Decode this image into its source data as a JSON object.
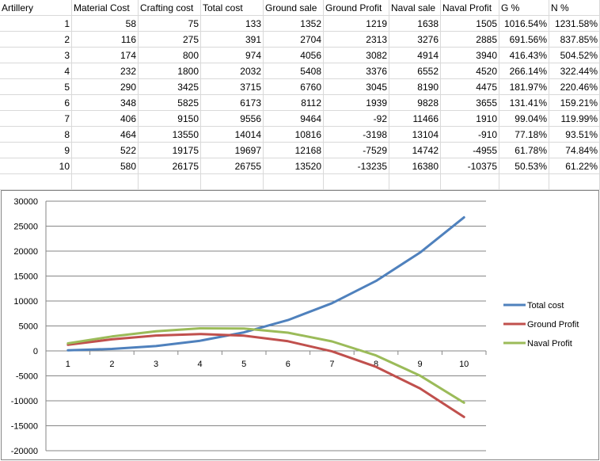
{
  "sheet": {
    "headers": [
      "Artillery",
      "Material Cost",
      "Crafting cost",
      "Total cost",
      "Ground sale",
      "Ground Profit",
      "Naval sale",
      "Naval Profit",
      "G %",
      "N %"
    ],
    "rows": [
      [
        "1",
        "58",
        "75",
        "133",
        "1352",
        "1219",
        "1638",
        "1505",
        "1016.54%",
        "1231.58%"
      ],
      [
        "2",
        "116",
        "275",
        "391",
        "2704",
        "2313",
        "3276",
        "2885",
        "691.56%",
        "837.85%"
      ],
      [
        "3",
        "174",
        "800",
        "974",
        "4056",
        "3082",
        "4914",
        "3940",
        "416.43%",
        "504.52%"
      ],
      [
        "4",
        "232",
        "1800",
        "2032",
        "5408",
        "3376",
        "6552",
        "4520",
        "266.14%",
        "322.44%"
      ],
      [
        "5",
        "290",
        "3425",
        "3715",
        "6760",
        "3045",
        "8190",
        "4475",
        "181.97%",
        "220.46%"
      ],
      [
        "6",
        "348",
        "5825",
        "6173",
        "8112",
        "1939",
        "9828",
        "3655",
        "131.41%",
        "159.21%"
      ],
      [
        "7",
        "406",
        "9150",
        "9556",
        "9464",
        "-92",
        "11466",
        "1910",
        "99.04%",
        "119.99%"
      ],
      [
        "8",
        "464",
        "13550",
        "14014",
        "10816",
        "-3198",
        "13104",
        "-910",
        "77.18%",
        "93.51%"
      ],
      [
        "9",
        "522",
        "19175",
        "19697",
        "12168",
        "-7529",
        "14742",
        "-4955",
        "61.78%",
        "74.84%"
      ],
      [
        "10",
        "580",
        "26175",
        "26755",
        "13520",
        "-13235",
        "16380",
        "-10375",
        "50.53%",
        "61.22%"
      ]
    ]
  },
  "chart_data": {
    "type": "line",
    "x": [
      1,
      2,
      3,
      4,
      5,
      6,
      7,
      8,
      9,
      10
    ],
    "series": [
      {
        "name": "Total cost",
        "color": "#4F81BD",
        "values": [
          133,
          391,
          974,
          2032,
          3715,
          6173,
          9556,
          14014,
          19697,
          26755
        ]
      },
      {
        "name": "Ground Profit",
        "color": "#C0504D",
        "values": [
          1219,
          2313,
          3082,
          3376,
          3045,
          1939,
          -92,
          -3198,
          -7529,
          -13235
        ]
      },
      {
        "name": "Naval Profit",
        "color": "#9BBB59",
        "values": [
          1505,
          2885,
          3940,
          4520,
          4475,
          3655,
          1910,
          -910,
          -4955,
          -10375
        ]
      }
    ],
    "yticks": [
      "30000",
      "25000",
      "20000",
      "15000",
      "10000",
      "5000",
      "0",
      "-5000",
      "-10000",
      "-15000",
      "-20000"
    ],
    "xticks": [
      "1",
      "2",
      "3",
      "4",
      "5",
      "6",
      "7",
      "8",
      "9",
      "10"
    ],
    "ylim": [
      -20000,
      30000
    ],
    "grid": true,
    "legend": "right"
  }
}
